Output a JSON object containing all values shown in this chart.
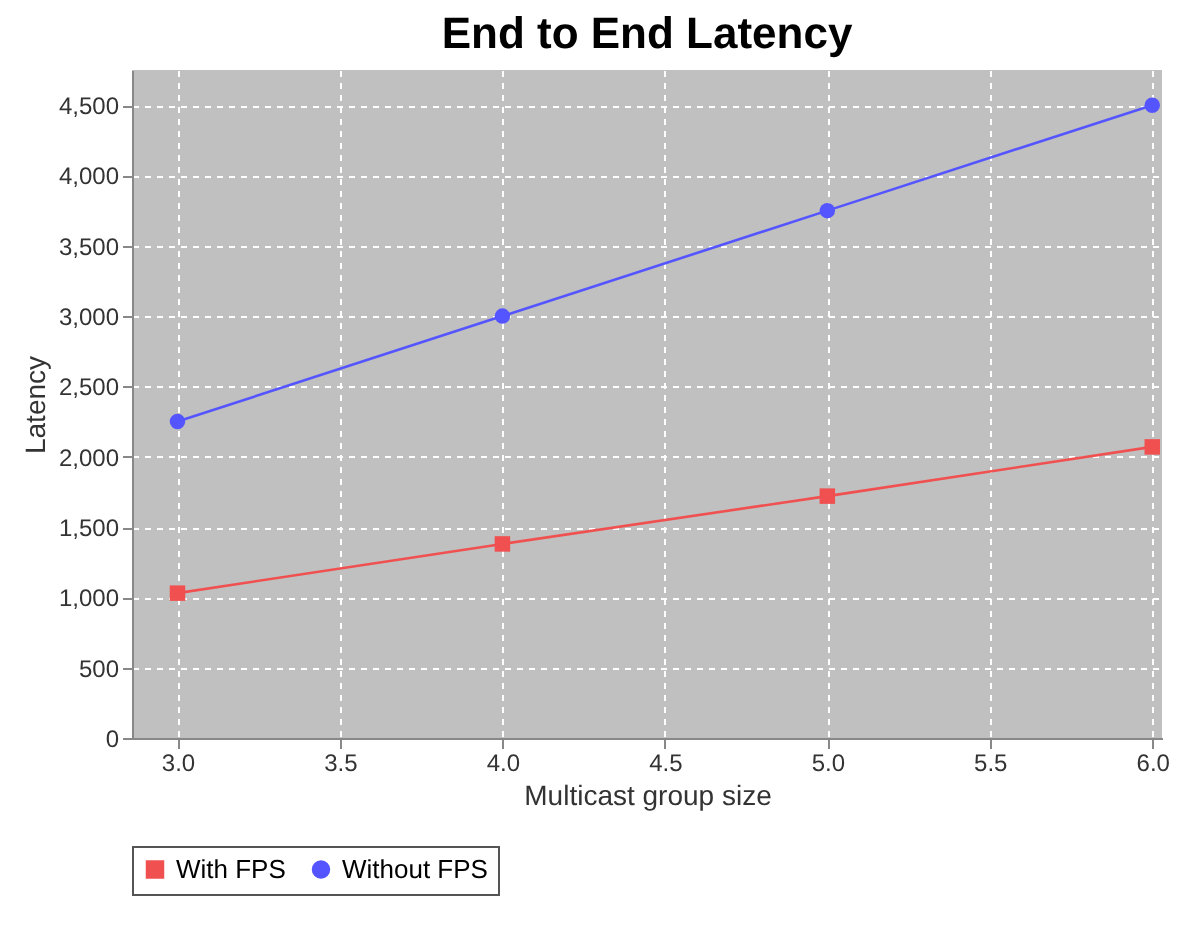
{
  "chart_data": {
    "type": "line",
    "title": "End to End Latency",
    "xlabel": "Multicast group size",
    "ylabel": "Latency",
    "x": [
      3,
      4,
      5,
      6
    ],
    "series": [
      {
        "name": "With FPS",
        "color": "#f05050",
        "marker": "square",
        "values": [
          1030,
          1380,
          1720,
          2070
        ]
      },
      {
        "name": "Without FPS",
        "color": "#5555ff",
        "marker": "circle",
        "values": [
          2250,
          3000,
          3750,
          4500
        ]
      }
    ],
    "xlim": [
      2.86,
      6.03
    ],
    "xticks": [
      {
        "value": 3,
        "label": "3.0"
      },
      {
        "value": 3.5,
        "label": "3.5"
      },
      {
        "value": 4,
        "label": "4.0"
      },
      {
        "value": 4.5,
        "label": "4.5"
      },
      {
        "value": 5,
        "label": "5.0"
      },
      {
        "value": 5.5,
        "label": "5.5"
      },
      {
        "value": 6,
        "label": "6.0"
      }
    ],
    "ylim": [
      0,
      4750
    ],
    "yticks": [
      {
        "value": 0,
        "label": "0"
      },
      {
        "value": 500,
        "label": "500"
      },
      {
        "value": 1000,
        "label": "1,000"
      },
      {
        "value": 1500,
        "label": "1,500"
      },
      {
        "value": 2000,
        "label": "2,000"
      },
      {
        "value": 2500,
        "label": "2,500"
      },
      {
        "value": 3000,
        "label": "3,000"
      },
      {
        "value": 3500,
        "label": "3,500"
      },
      {
        "value": 4000,
        "label": "4,000"
      },
      {
        "value": 4500,
        "label": "4,500"
      }
    ],
    "grid": true,
    "legend": "bottom",
    "line_style": "solid"
  }
}
